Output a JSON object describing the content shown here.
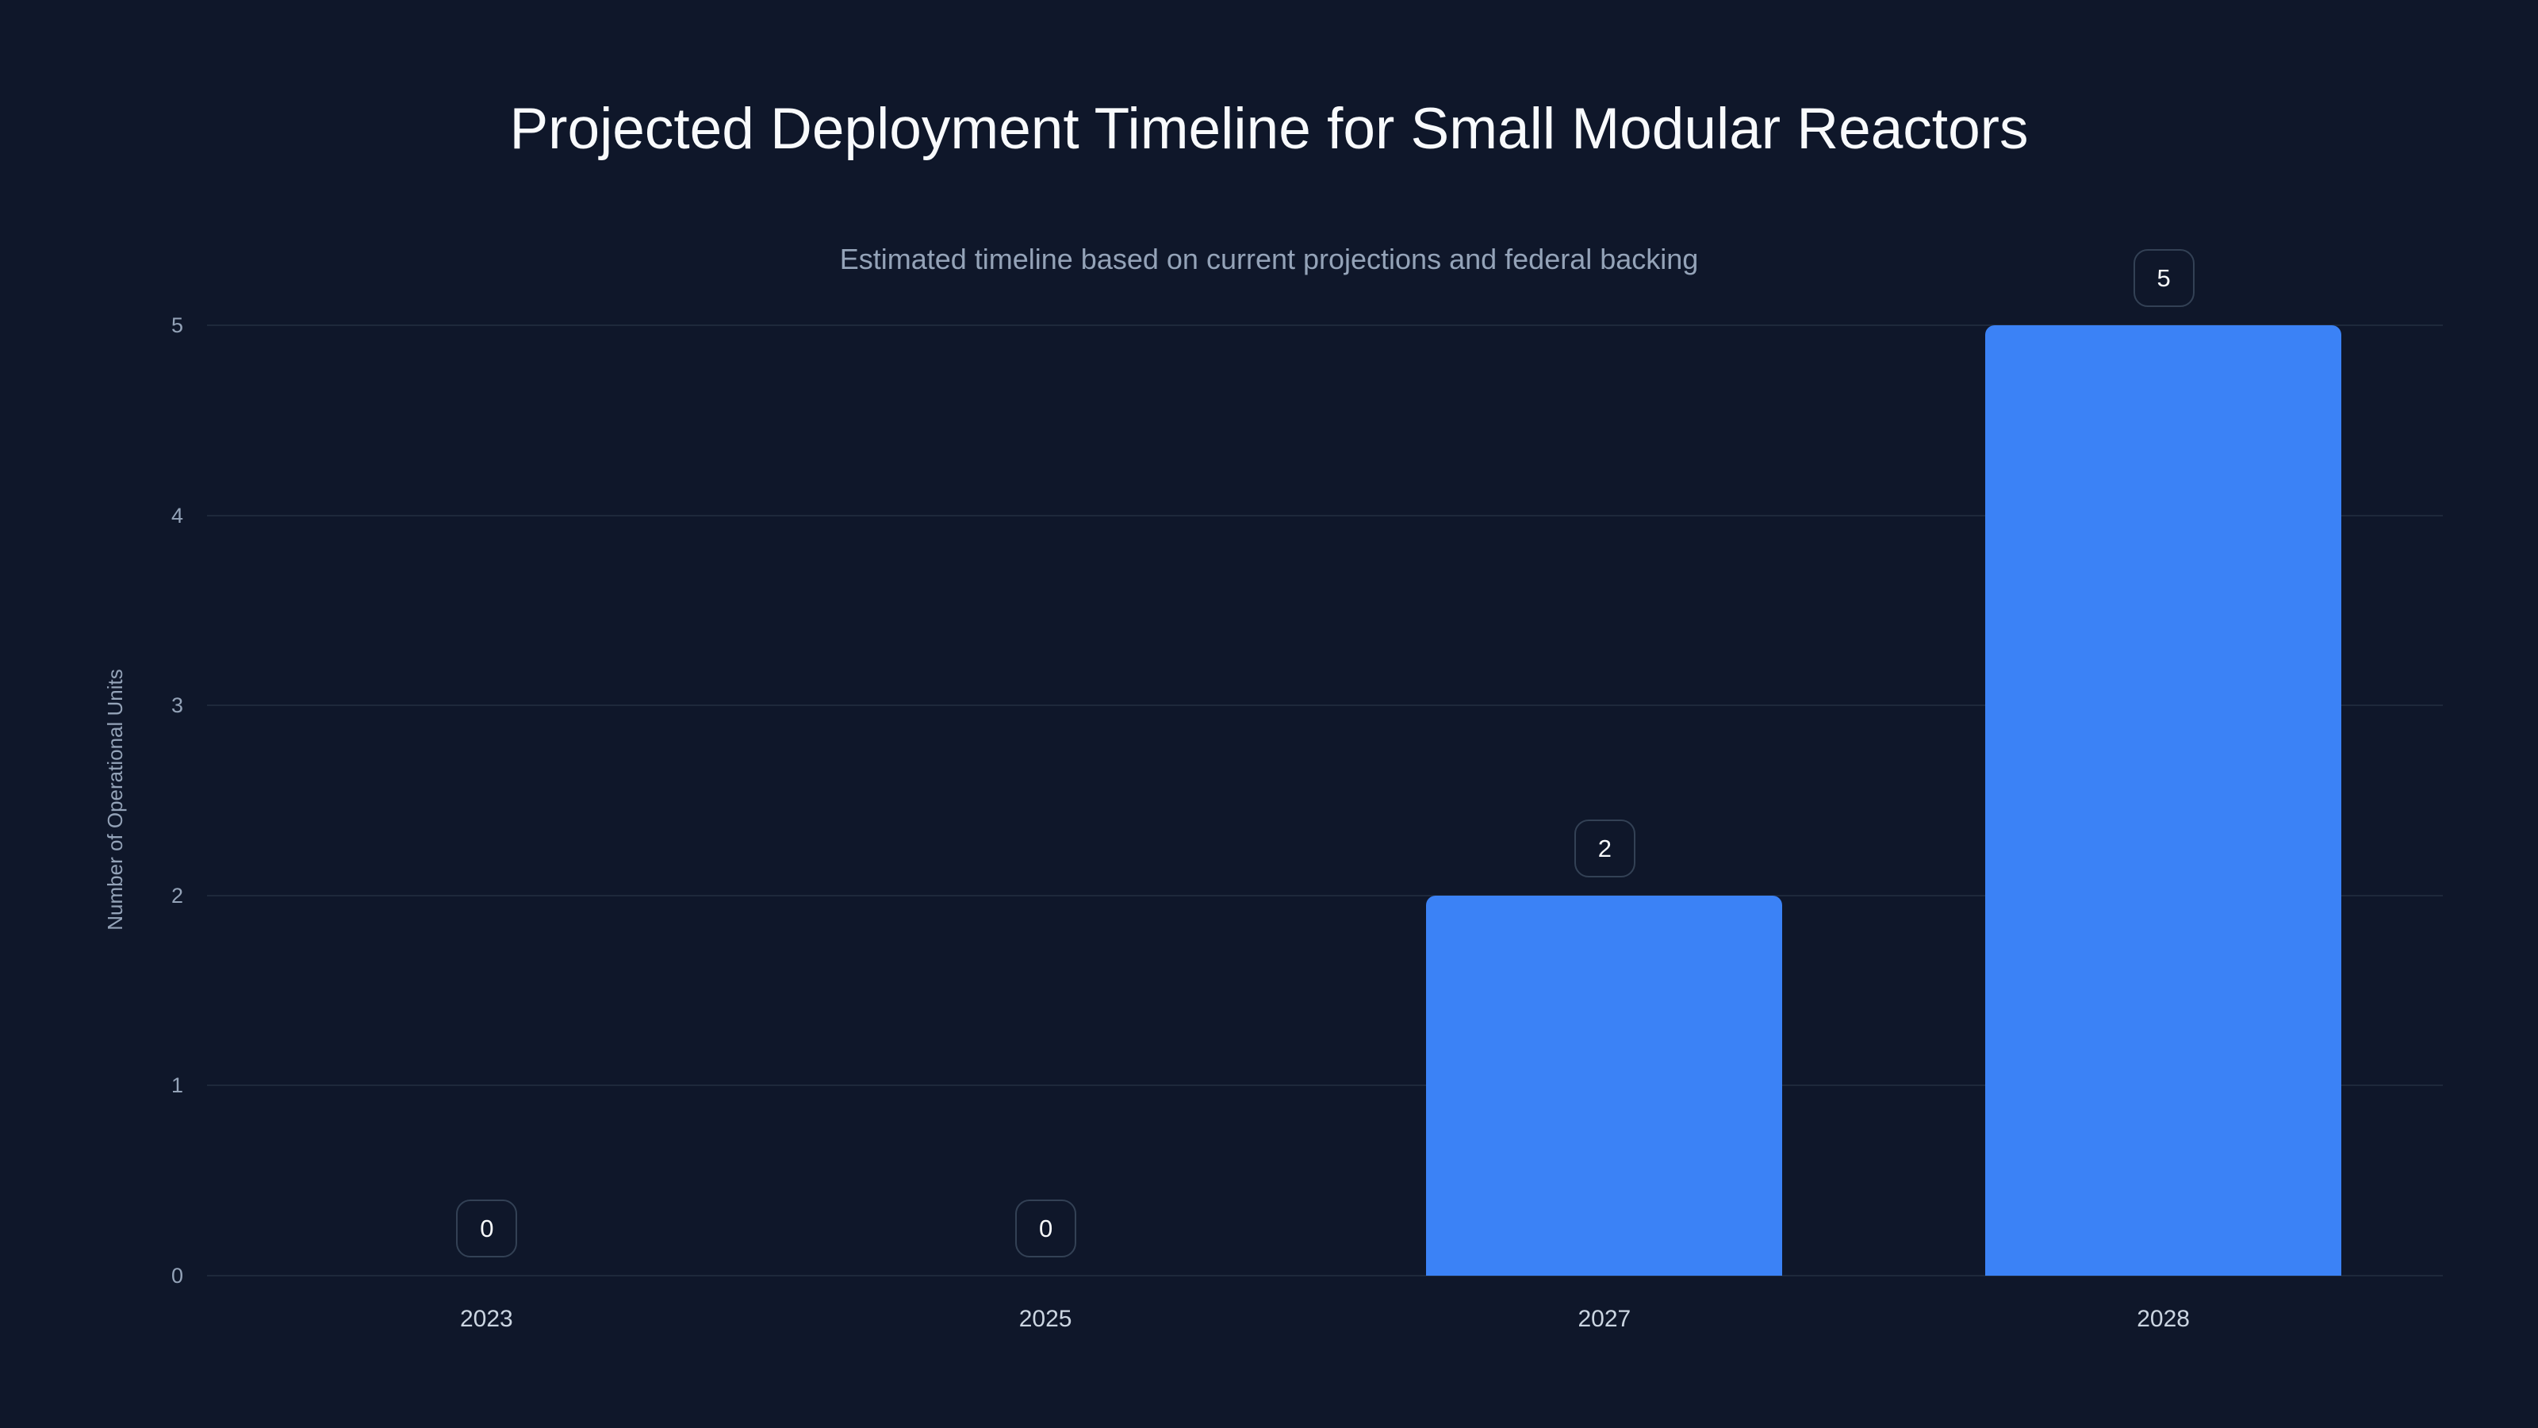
{
  "chart_data": {
    "type": "bar",
    "title": "Projected Deployment Timeline for Small Modular Reactors",
    "subtitle": "Estimated timeline based on current projections and federal backing",
    "xlabel": "",
    "ylabel": "Number of Operational Units",
    "categories": [
      "2023",
      "2025",
      "2027",
      "2028"
    ],
    "values": [
      0,
      0,
      2,
      5
    ],
    "ylim": [
      0,
      5
    ],
    "yticks": [
      "0",
      "1",
      "2",
      "3",
      "4",
      "5"
    ],
    "grid": true,
    "legend": null,
    "data_labels": [
      "0",
      "0",
      "2",
      "5"
    ],
    "colors": {
      "background": "#0f172a",
      "bar": "#3b82f6",
      "gridline": "#1e293b",
      "title": "#f8fafc",
      "subtitle": "#94a3b8",
      "axis_text": "#94a3b8",
      "category_text": "#cbd5e1",
      "label_border": "#334155"
    }
  }
}
